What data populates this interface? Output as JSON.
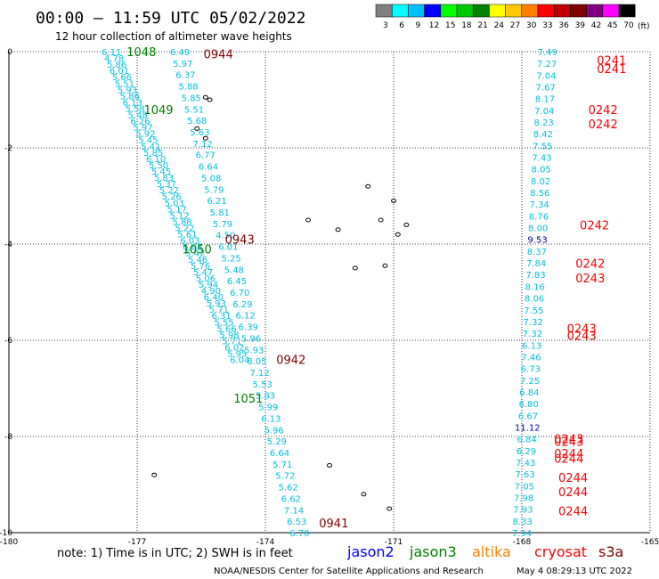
{
  "header": {
    "title": "00:00 — 11:59 UTC 05/02/2022",
    "subtitle": "12 hour collection of altimeter wave heights"
  },
  "colorbar": {
    "unit": "(ft)",
    "ticks": [
      "3",
      "6",
      "9",
      "12",
      "15",
      "18",
      "21",
      "24",
      "27",
      "30",
      "33",
      "36",
      "39",
      "42",
      "45",
      "70"
    ],
    "colors": [
      "#808080",
      "#00ffff",
      "#00c0ff",
      "#0000ff",
      "#00ff00",
      "#00c800",
      "#008000",
      "#ffff00",
      "#ffc800",
      "#ff8000",
      "#ff0000",
      "#c00000",
      "#800000",
      "#800080",
      "#ff00ff",
      "#000000"
    ]
  },
  "footer": {
    "note": "note:  1) Time is in UTC;  2) SWH is in feet",
    "credit": "NOAA/NESDIS Center for Satellite Applications and Research",
    "timestamp": "May  4 08:29:13 UTC 2022"
  },
  "legend": [
    {
      "name": "jason2",
      "color": "#0000ff"
    },
    {
      "name": "jason3",
      "color": "#008000"
    },
    {
      "name": "altika",
      "color": "#ff8000"
    },
    {
      "name": "cryosat",
      "color": "#ff0000"
    },
    {
      "name": "s3a",
      "color": "#800000"
    }
  ],
  "chart_data": {
    "type": "scatter",
    "title": "00:00 — 11:59 UTC 05/02/2022",
    "xlim": [
      -180,
      -165
    ],
    "ylim": [
      -10,
      0
    ],
    "x_ticks": [
      "-180",
      "-177",
      "-174",
      "-171",
      "-168",
      "-165"
    ],
    "y_ticks": [
      "0",
      "-2",
      "-4",
      "-6",
      "-8",
      "-10"
    ],
    "grid": true,
    "tracks": [
      {
        "name": "jason3 track A",
        "color": "#00c0e0",
        "start": [
          -177.6,
          0
        ],
        "end": [
          -174.6,
          -6.4
        ],
        "values": [
          "6.11",
          "4.78",
          "5.86",
          "6.01",
          "5.66",
          "5.51",
          "5.93",
          "5.86",
          "6.13",
          "5.58",
          "5.48",
          "6.26",
          "5.97",
          "5.92",
          "5.45",
          "5.41",
          "5.85",
          "6.10",
          "5.50",
          "5.45",
          "5.83",
          "5.37",
          "5.22",
          "5.26",
          "5.03",
          "5.17",
          "5.12",
          "5.88",
          "5.22",
          "5.61",
          "6.03",
          "6.68",
          "5.42",
          "5.46",
          "5.76",
          "5.47",
          "5.06",
          "5.94",
          "4.90",
          "6.40",
          "5.93",
          "5.71",
          "6.31",
          "5.55",
          "5.66",
          "5.98",
          "5.71",
          "6.02",
          "5.95",
          "6.04"
        ]
      },
      {
        "name": "jason3 track B",
        "color": "#00c0e0",
        "start": [
          -176.0,
          0
        ],
        "end": [
          -173.2,
          -10
        ],
        "values": [
          "6.49",
          "5.97",
          "6.37",
          "5.88",
          "5.85",
          "5.51",
          "5.68",
          "5.63",
          "7.12",
          "6.77",
          "6.64",
          "5.08",
          "5.79",
          "6.21",
          "5.81",
          "5.79",
          "4.50",
          "6.01",
          "5.25",
          "5.48",
          "6.45",
          "6.70",
          "6.29",
          "6.12",
          "6.39",
          "5.96",
          "5.93",
          "8.05",
          "7.12",
          "5.53",
          "5.83",
          "5.99",
          "6.13",
          "5.96",
          "5.29",
          "6.64",
          "5.71",
          "5.72",
          "5.62",
          "6.62",
          "7.14",
          "6.53",
          "6.70"
        ]
      },
      {
        "name": "cryosat track",
        "color": "#00c0e0",
        "start": [
          -167.4,
          0
        ],
        "end": [
          -168.0,
          -10
        ],
        "values": [
          "7.49",
          "7.27",
          "7.04",
          "7.67",
          "8.17",
          "7.04",
          "8.23",
          "8.42",
          "7.55",
          "7.43",
          "8.05",
          "8.02",
          "8.56",
          "7.34",
          "8.76",
          "8.00",
          "9.53",
          "8.37",
          "7.84",
          "7.83",
          "8.16",
          "8.06",
          "7.55",
          "7.32",
          "7.32",
          "6.13",
          "7.46",
          "6.73",
          "7.25",
          "6.84",
          "6.80",
          "6.67",
          "11.12",
          "6.84",
          "6.29",
          "7.43",
          "7.63",
          "7.05",
          "7.98",
          "7.93",
          "8.33",
          "7.94"
        ]
      }
    ],
    "time_labels": [
      {
        "text": "1048",
        "lon": -176.9,
        "lat": 0.0,
        "color": "#008000"
      },
      {
        "text": "0944",
        "lon": -175.1,
        "lat": -0.05,
        "color": "#800000"
      },
      {
        "text": "1049",
        "lon": -176.5,
        "lat": -1.2,
        "color": "#008000"
      },
      {
        "text": "0943",
        "lon": -174.6,
        "lat": -3.9,
        "color": "#800000"
      },
      {
        "text": "1050",
        "lon": -175.6,
        "lat": -4.1,
        "color": "#008000"
      },
      {
        "text": "0942",
        "lon": -173.4,
        "lat": -6.4,
        "color": "#800000"
      },
      {
        "text": "1051",
        "lon": -174.4,
        "lat": -7.2,
        "color": "#008000"
      },
      {
        "text": "0941",
        "lon": -172.4,
        "lat": -9.8,
        "color": "#800000"
      },
      {
        "text": "0241",
        "lon": -165.9,
        "lat": -0.18,
        "color": "#ff0000"
      },
      {
        "text": "0241",
        "lon": -165.9,
        "lat": -0.35,
        "color": "#ff0000"
      },
      {
        "text": "0242",
        "lon": -166.1,
        "lat": -1.2,
        "color": "#ff0000"
      },
      {
        "text": "0242",
        "lon": -166.1,
        "lat": -1.5,
        "color": "#ff0000"
      },
      {
        "text": "0242",
        "lon": -166.3,
        "lat": -3.6,
        "color": "#ff0000"
      },
      {
        "text": "0242",
        "lon": -166.4,
        "lat": -4.4,
        "color": "#ff0000"
      },
      {
        "text": "0243",
        "lon": -166.4,
        "lat": -4.7,
        "color": "#ff0000"
      },
      {
        "text": "0243",
        "lon": -166.6,
        "lat": -5.75,
        "color": "#ff0000"
      },
      {
        "text": "0243",
        "lon": -166.6,
        "lat": -5.9,
        "color": "#ff0000"
      },
      {
        "text": "0243",
        "lon": -166.9,
        "lat": -8.05,
        "color": "#ff0000"
      },
      {
        "text": "0243",
        "lon": -166.9,
        "lat": -8.1,
        "color": "#ff0000"
      },
      {
        "text": "0244",
        "lon": -166.9,
        "lat": -8.35,
        "color": "#ff0000"
      },
      {
        "text": "0244",
        "lon": -166.9,
        "lat": -8.45,
        "color": "#ff0000"
      },
      {
        "text": "0244",
        "lon": -166.8,
        "lat": -8.85,
        "color": "#ff0000"
      },
      {
        "text": "0244",
        "lon": -166.8,
        "lat": -9.15,
        "color": "#ff0000"
      },
      {
        "text": "0244",
        "lon": -166.8,
        "lat": -9.55,
        "color": "#ff0000"
      }
    ],
    "islands": [
      [
        -175.4,
        -0.95
      ],
      [
        -175.3,
        -1.0
      ],
      [
        -175.6,
        -1.6
      ],
      [
        -175.4,
        -1.8
      ],
      [
        -171.6,
        -2.8
      ],
      [
        -171.0,
        -3.1
      ],
      [
        -170.7,
        -3.6
      ],
      [
        -171.3,
        -3.5
      ],
      [
        -173.0,
        -3.5
      ],
      [
        -172.3,
        -3.7
      ],
      [
        -170.9,
        -3.8
      ],
      [
        -171.9,
        -4.5
      ],
      [
        -171.2,
        -4.45
      ],
      [
        -172.5,
        -8.6
      ],
      [
        -176.6,
        -8.8
      ],
      [
        -171.7,
        -9.2
      ],
      [
        -171.1,
        -9.5
      ]
    ]
  }
}
